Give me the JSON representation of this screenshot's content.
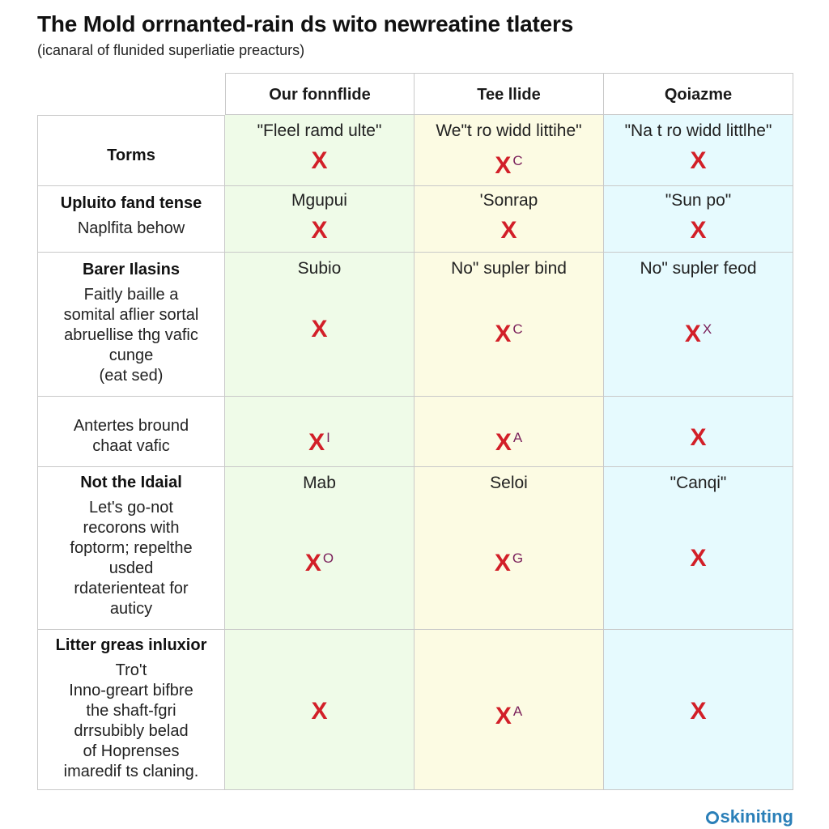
{
  "header": {
    "title": "The Mold orrnanted-rain ds wito newreatine tlaters",
    "subtitle": "(icanaral of flunided superliatie preacturs)"
  },
  "columns": [
    "Our fonnflide",
    "Tee llide",
    "Qoiazme"
  ],
  "rows": [
    {
      "title": "Torms",
      "desc": [],
      "cells": [
        {
          "text": "\"Fleel ramd ulte\"",
          "mark": "X",
          "sup": ""
        },
        {
          "text": "We\"t ro widd littihe\"",
          "mark": "X",
          "sup": "C"
        },
        {
          "text": "\"Na t ro widd littlhe\"",
          "mark": "X",
          "sup": ""
        }
      ]
    },
    {
      "title": "Upluito fand tense",
      "desc": [
        "Naplfita behow"
      ],
      "cells": [
        {
          "text": "Mgupui",
          "mark": "X",
          "sup": ""
        },
        {
          "text": "'Sonrap",
          "mark": "X",
          "sup": ""
        },
        {
          "text": "\"Sun po\"",
          "mark": "X",
          "sup": ""
        }
      ]
    },
    {
      "title": "Barer Ilasins",
      "desc": [
        "Faitly baille a",
        "somital aflier sortal",
        "abruellise thg vafic",
        "cunge",
        "(eat sed)"
      ],
      "cells": [
        {
          "text": "Subio",
          "mark": "X",
          "sup": ""
        },
        {
          "text": "No\" supler bind",
          "mark": "X",
          "sup": "C"
        },
        {
          "text": "No\" supler feod",
          "mark": "X",
          "sup": "X"
        }
      ]
    },
    {
      "title": "",
      "desc": [
        "Antertes bround",
        "chaat vafic"
      ],
      "cells": [
        {
          "text": "",
          "mark": "X",
          "sup": "I"
        },
        {
          "text": "",
          "mark": "X",
          "sup": "A"
        },
        {
          "text": "",
          "mark": "X",
          "sup": ""
        }
      ]
    },
    {
      "title": "Not the Idaial",
      "desc": [
        "Let's go-not",
        "recorons with",
        "foptorm; repelthe",
        "usded",
        "rdaterienteat for",
        "auticy"
      ],
      "cells": [
        {
          "text": "Mab",
          "mark": "X",
          "sup": "O"
        },
        {
          "text": "Seloi",
          "mark": "X",
          "sup": "G"
        },
        {
          "text": "\"Canqi\"",
          "mark": "X",
          "sup": ""
        }
      ]
    },
    {
      "title": "Litter greas inluxior",
      "desc": [
        "Tro't",
        "Inno-greart bifbre",
        "the shaft-fgri",
        "drrsubibly belad",
        "of Hoprenses",
        "imaredif ts claning."
      ],
      "cells": [
        {
          "text": "",
          "mark": "X",
          "sup": ""
        },
        {
          "text": "",
          "mark": "X",
          "sup": "A"
        },
        {
          "text": "",
          "mark": "X",
          "sup": ""
        }
      ]
    }
  ],
  "footer": {
    "brand": "skiniting"
  },
  "colors": {
    "mark": "#d21f28",
    "col_a_bg": "#effbe8",
    "col_b_bg": "#fcfbe3",
    "col_c_bg": "#e6fafe"
  }
}
